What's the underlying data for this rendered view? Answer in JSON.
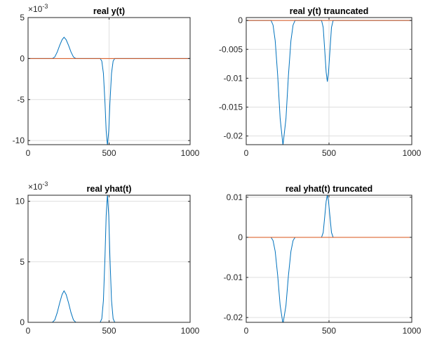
{
  "chart_data": [
    {
      "type": "line",
      "title": "real y(t)",
      "xlim": [
        0,
        1000
      ],
      "ylim": [
        -0.0105,
        0.005
      ],
      "x_ticks": [
        0,
        500,
        1000
      ],
      "y_ticks": [
        -0.01,
        -0.005,
        0,
        0.005
      ],
      "y_tick_labels": [
        "-10",
        "-5",
        "0",
        "5"
      ],
      "y_exponent_label": "×10",
      "y_exponent_power": "-3",
      "grid": true,
      "series": [
        {
          "color": "#0072BD",
          "points": [
            [
              0,
              0
            ],
            [
              150,
              0
            ],
            [
              165,
              0.0002
            ],
            [
              180,
              0.0008
            ],
            [
              195,
              0.0016
            ],
            [
              210,
              0.0023
            ],
            [
              222,
              0.0026
            ],
            [
              235,
              0.0023
            ],
            [
              250,
              0.0016
            ],
            [
              265,
              0.0008
            ],
            [
              280,
              0.0002
            ],
            [
              295,
              0
            ],
            [
              445,
              0
            ],
            [
              455,
              -0.0003
            ],
            [
              465,
              -0.0018
            ],
            [
              475,
              -0.0055
            ],
            [
              482,
              -0.0088
            ],
            [
              490,
              -0.0106
            ],
            [
              498,
              -0.0088
            ],
            [
              505,
              -0.0055
            ],
            [
              515,
              -0.0018
            ],
            [
              525,
              -0.0003
            ],
            [
              535,
              0
            ],
            [
              1000,
              0
            ]
          ]
        },
        {
          "color": "#D95319",
          "points": [
            [
              0,
              0
            ],
            [
              1000,
              0
            ]
          ]
        }
      ]
    },
    {
      "type": "line",
      "title": "real y(t) trauncated",
      "xlim": [
        0,
        1000
      ],
      "ylim": [
        -0.0215,
        0.0005
      ],
      "x_ticks": [
        0,
        500,
        1000
      ],
      "y_ticks": [
        -0.02,
        -0.015,
        -0.01,
        -0.005,
        0
      ],
      "y_tick_labels": [
        "-0.02",
        "-0.015",
        "-0.01",
        "-0.005",
        "0"
      ],
      "grid": true,
      "series": [
        {
          "color": "#0072BD",
          "points": [
            [
              0,
              0
            ],
            [
              150,
              0
            ],
            [
              162,
              -0.0008
            ],
            [
              175,
              -0.0035
            ],
            [
              190,
              -0.0095
            ],
            [
              205,
              -0.017
            ],
            [
              222,
              -0.0216
            ],
            [
              240,
              -0.017
            ],
            [
              255,
              -0.0095
            ],
            [
              270,
              -0.0035
            ],
            [
              283,
              -0.0008
            ],
            [
              295,
              0
            ],
            [
              455,
              0
            ],
            [
              465,
              -0.0012
            ],
            [
              475,
              -0.0055
            ],
            [
              483,
              -0.009
            ],
            [
              490,
              -0.0106
            ],
            [
              497,
              -0.009
            ],
            [
              505,
              -0.0055
            ],
            [
              515,
              -0.0012
            ],
            [
              525,
              0
            ],
            [
              1000,
              0
            ]
          ]
        },
        {
          "color": "#D95319",
          "points": [
            [
              0,
              0
            ],
            [
              1000,
              0
            ]
          ]
        }
      ]
    },
    {
      "type": "line",
      "title": "real yhat(t)",
      "xlim": [
        0,
        1000
      ],
      "ylim": [
        0,
        0.0105
      ],
      "x_ticks": [
        0,
        500,
        1000
      ],
      "y_ticks": [
        0,
        0.005,
        0.01
      ],
      "y_tick_labels": [
        "0",
        "5",
        "10"
      ],
      "y_exponent_label": "×10",
      "y_exponent_power": "-3",
      "grid": true,
      "series": [
        {
          "color": "#0072BD",
          "points": [
            [
              0,
              0
            ],
            [
              150,
              0
            ],
            [
              165,
              0.0002
            ],
            [
              180,
              0.0008
            ],
            [
              195,
              0.0016
            ],
            [
              210,
              0.0023
            ],
            [
              222,
              0.0026
            ],
            [
              235,
              0.0023
            ],
            [
              250,
              0.0016
            ],
            [
              265,
              0.0008
            ],
            [
              280,
              0.0002
            ],
            [
              295,
              0
            ],
            [
              445,
              0
            ],
            [
              455,
              0.0003
            ],
            [
              465,
              0.0018
            ],
            [
              475,
              0.0055
            ],
            [
              482,
              0.0088
            ],
            [
              490,
              0.0106
            ],
            [
              498,
              0.0088
            ],
            [
              505,
              0.0055
            ],
            [
              515,
              0.0018
            ],
            [
              525,
              0.0003
            ],
            [
              535,
              0
            ],
            [
              1000,
              0
            ]
          ]
        },
        {
          "color": "#D95319",
          "points": [
            [
              0,
              0
            ],
            [
              1000,
              0
            ]
          ]
        }
      ]
    },
    {
      "type": "line",
      "title": "real yhat(t) truncated",
      "xlim": [
        0,
        1000
      ],
      "ylim": [
        -0.0212,
        0.0105
      ],
      "x_ticks": [
        0,
        500,
        1000
      ],
      "y_ticks": [
        -0.02,
        -0.01,
        0,
        0.01
      ],
      "y_tick_labels": [
        "-0.02",
        "-0.01",
        "0",
        "0.01"
      ],
      "grid": true,
      "series": [
        {
          "color": "#0072BD",
          "points": [
            [
              0,
              0
            ],
            [
              150,
              0
            ],
            [
              162,
              -0.0008
            ],
            [
              175,
              -0.0035
            ],
            [
              190,
              -0.0095
            ],
            [
              205,
              -0.017
            ],
            [
              222,
              -0.0216
            ],
            [
              240,
              -0.017
            ],
            [
              255,
              -0.0095
            ],
            [
              270,
              -0.0035
            ],
            [
              283,
              -0.0008
            ],
            [
              295,
              0
            ],
            [
              455,
              0
            ],
            [
              465,
              0.0012
            ],
            [
              475,
              0.0055
            ],
            [
              483,
              0.009
            ],
            [
              490,
              0.0106
            ],
            [
              497,
              0.009
            ],
            [
              505,
              0.0055
            ],
            [
              515,
              0.0012
            ],
            [
              525,
              0
            ],
            [
              1000,
              0
            ]
          ]
        },
        {
          "color": "#D95319",
          "points": [
            [
              0,
              0
            ],
            [
              1000,
              0
            ]
          ]
        }
      ]
    }
  ]
}
